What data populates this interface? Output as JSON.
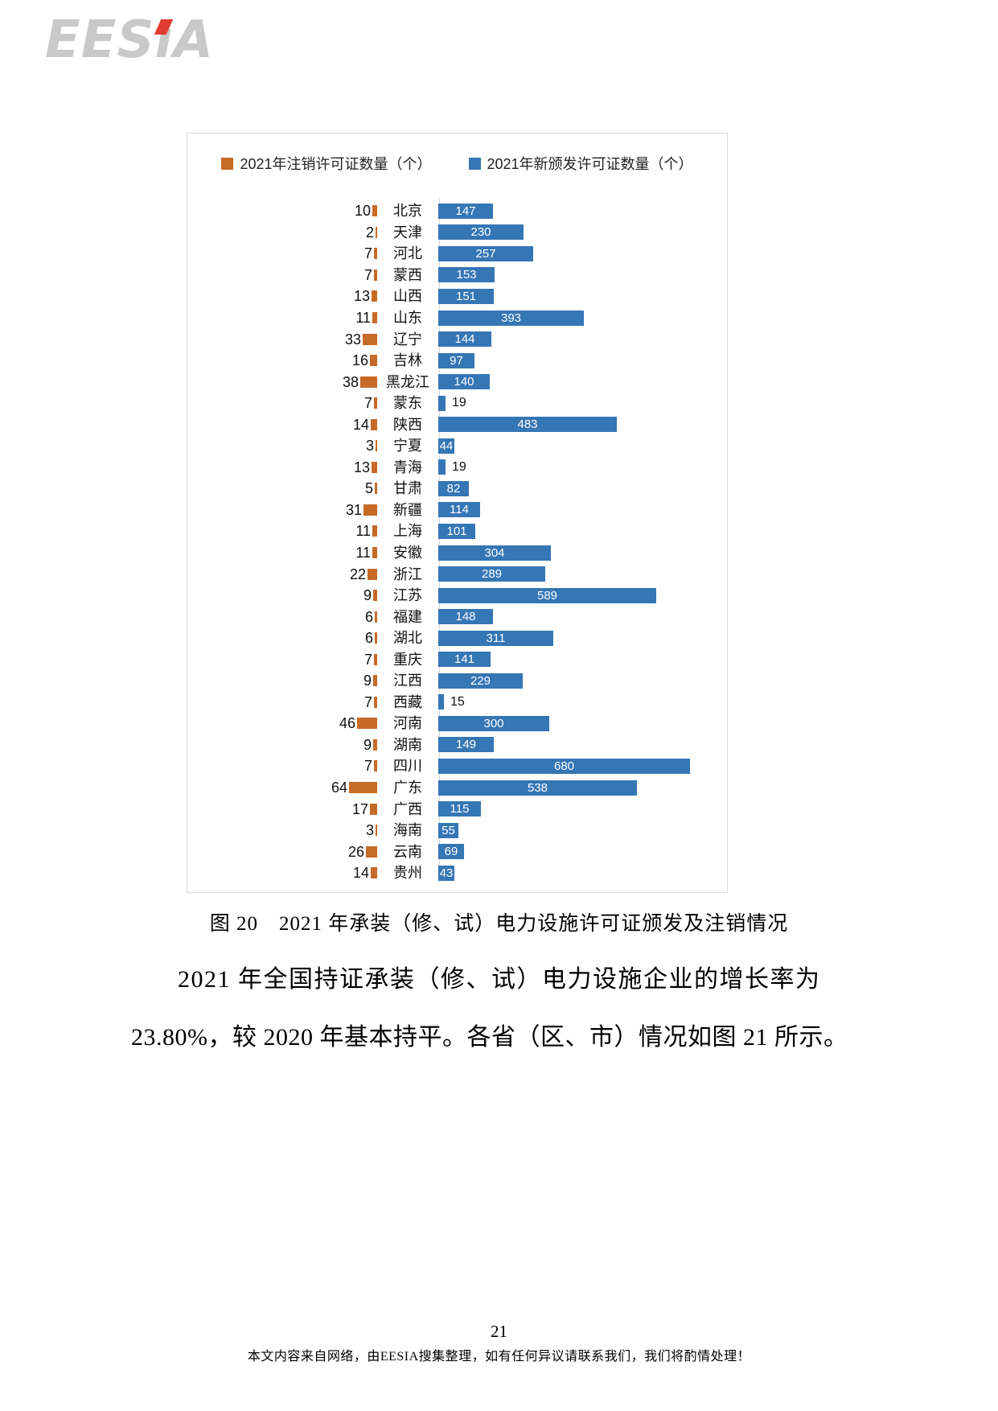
{
  "logo": {
    "text": "EESıA",
    "gray_color": "#c9c9c9",
    "accent_color": "#e03c31"
  },
  "colors": {
    "cancelled_orange": "#c66a27",
    "issued_blue": "#3576b5",
    "chart_border": "#d9d9d9"
  },
  "chart_data": {
    "type": "bar",
    "orientation": "horizontal",
    "title": "",
    "legend_position": "top",
    "categories": [
      "北京",
      "天津",
      "河北",
      "蒙西",
      "山西",
      "山东",
      "辽宁",
      "吉林",
      "黑龙江",
      "蒙东",
      "陕西",
      "宁夏",
      "青海",
      "甘肃",
      "新疆",
      "上海",
      "安徽",
      "浙江",
      "江苏",
      "福建",
      "湖北",
      "重庆",
      "江西",
      "西藏",
      "河南",
      "湖南",
      "四川",
      "广东",
      "广西",
      "海南",
      "云南",
      "贵州"
    ],
    "series": [
      {
        "name": "2021年注销许可证数量（个）",
        "color": "#c66a27",
        "values": [
          10,
          2,
          7,
          7,
          13,
          11,
          33,
          16,
          38,
          7,
          14,
          3,
          13,
          5,
          31,
          11,
          11,
          22,
          9,
          6,
          6,
          7,
          9,
          7,
          46,
          9,
          7,
          64,
          17,
          3,
          26,
          14
        ]
      },
      {
        "name": "2021年新颁发许可证数量（个）",
        "color": "#3576b5",
        "values": [
          147,
          230,
          257,
          153,
          151,
          393,
          144,
          97,
          140,
          19,
          483,
          44,
          19,
          82,
          114,
          101,
          304,
          289,
          589,
          148,
          311,
          141,
          229,
          15,
          300,
          149,
          680,
          538,
          115,
          55,
          69,
          43
        ]
      }
    ]
  },
  "caption": "图 20　2021 年承装（修、试）电力设施许可证颁发及注销情况",
  "paragraph": {
    "line1": "2021 年全国持证承装（修、试）电力设施企业的增长率为",
    "line2": "23.80%，较 2020 年基本持平。各省（区、市）情况如图 21 所示。"
  },
  "page_number": "21",
  "footer": "本文内容来自网络，由EESIA搜集整理，如有任何异议请联系我们，我们将酌情处理！"
}
